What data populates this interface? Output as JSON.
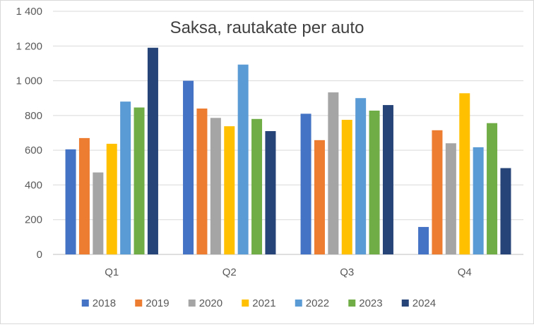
{
  "chart_data": {
    "type": "bar",
    "title": "Saksa, rautakate per auto",
    "xlabel": "",
    "ylabel": "",
    "categories": [
      "Q1",
      "Q2",
      "Q3",
      "Q4"
    ],
    "ylim": [
      0,
      1400
    ],
    "yticks": [
      0,
      200,
      400,
      600,
      800,
      1000,
      1200,
      1400
    ],
    "ytick_labels": [
      "0",
      "200",
      "400",
      "600",
      "800",
      "1 000",
      "1 200",
      "1 400"
    ],
    "grid": true,
    "legend_position": "bottom",
    "series": [
      {
        "name": "2018",
        "color": "#4472C4",
        "values": [
          605,
          1000,
          810,
          158
        ]
      },
      {
        "name": "2019",
        "color": "#ED7D31",
        "values": [
          670,
          840,
          658,
          715
        ]
      },
      {
        "name": "2020",
        "color": "#A5A5A5",
        "values": [
          472,
          786,
          933,
          640
        ]
      },
      {
        "name": "2021",
        "color": "#FFC000",
        "values": [
          637,
          738,
          775,
          928
        ]
      },
      {
        "name": "2022",
        "color": "#5B9BD5",
        "values": [
          880,
          1093,
          900,
          617
        ]
      },
      {
        "name": "2023",
        "color": "#70AD47",
        "values": [
          846,
          780,
          828,
          756
        ]
      },
      {
        "name": "2024",
        "color": "#264478",
        "values": [
          1190,
          710,
          860,
          497
        ]
      }
    ]
  }
}
